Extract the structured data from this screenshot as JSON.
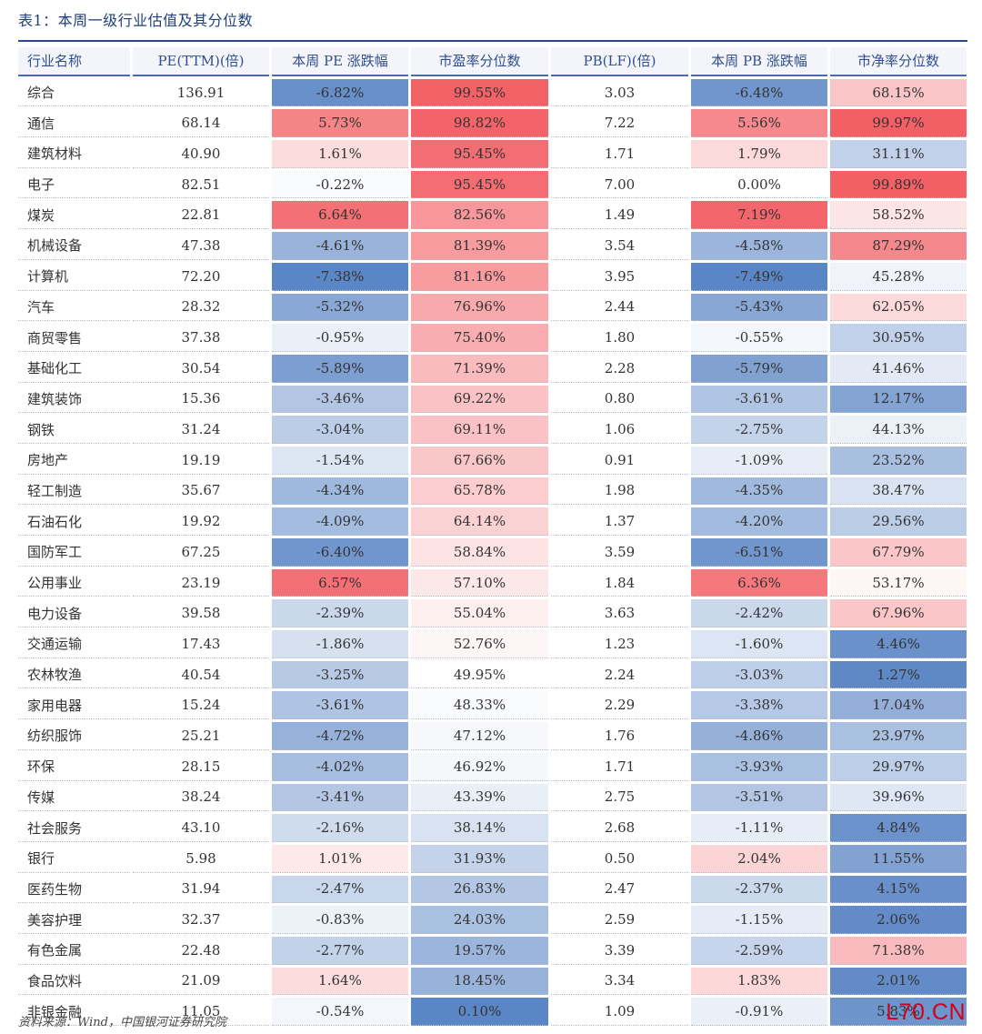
{
  "title": "表1：本周一级行业估值及其分位数",
  "columns": [
    "行业名称",
    "PE(TTM)(倍)",
    "本周 PE 涨跌幅",
    "市盈率分位数",
    "PB(LF)(倍)",
    "本周 PB 涨跌幅",
    "市净率分位数"
  ],
  "rows": [
    [
      "综合",
      "136.91",
      "-6.82%",
      "99.55%",
      "3.03",
      "-6.48%",
      "68.15%"
    ],
    [
      "通信",
      "68.14",
      "5.73%",
      "98.82%",
      "7.22",
      "5.56%",
      "99.97%"
    ],
    [
      "建筑材料",
      "40.90",
      "1.61%",
      "95.45%",
      "1.71",
      "1.79%",
      "31.11%"
    ],
    [
      "电子",
      "82.51",
      "-0.22%",
      "95.45%",
      "7.00",
      "0.00%",
      "99.89%"
    ],
    [
      "煤炭",
      "22.81",
      "6.64%",
      "82.56%",
      "1.49",
      "7.19%",
      "58.52%"
    ],
    [
      "机械设备",
      "47.38",
      "-4.61%",
      "81.39%",
      "3.54",
      "-4.58%",
      "87.29%"
    ],
    [
      "计算机",
      "72.20",
      "-7.38%",
      "81.16%",
      "3.95",
      "-7.49%",
      "45.28%"
    ],
    [
      "汽车",
      "28.32",
      "-5.32%",
      "76.96%",
      "2.44",
      "-5.43%",
      "62.05%"
    ],
    [
      "商贸零售",
      "37.38",
      "-0.95%",
      "75.40%",
      "1.80",
      "-0.55%",
      "30.95%"
    ],
    [
      "基础化工",
      "30.54",
      "-5.89%",
      "71.39%",
      "2.28",
      "-5.79%",
      "41.46%"
    ],
    [
      "建筑装饰",
      "15.36",
      "-3.46%",
      "69.22%",
      "0.80",
      "-3.61%",
      "12.17%"
    ],
    [
      "钢铁",
      "31.24",
      "-3.04%",
      "69.11%",
      "1.06",
      "-2.75%",
      "44.13%"
    ],
    [
      "房地产",
      "19.19",
      "-1.54%",
      "67.66%",
      "0.91",
      "-1.09%",
      "23.52%"
    ],
    [
      "轻工制造",
      "35.67",
      "-4.34%",
      "65.78%",
      "1.98",
      "-4.35%",
      "38.47%"
    ],
    [
      "石油石化",
      "19.92",
      "-4.09%",
      "64.14%",
      "1.37",
      "-4.20%",
      "29.56%"
    ],
    [
      "国防军工",
      "67.25",
      "-6.40%",
      "58.84%",
      "3.59",
      "-6.51%",
      "67.79%"
    ],
    [
      "公用事业",
      "23.19",
      "6.57%",
      "57.10%",
      "1.84",
      "6.36%",
      "53.17%"
    ],
    [
      "电力设备",
      "39.58",
      "-2.39%",
      "55.04%",
      "3.63",
      "-2.42%",
      "67.96%"
    ],
    [
      "交通运输",
      "17.43",
      "-1.86%",
      "52.76%",
      "1.23",
      "-1.60%",
      "4.46%"
    ],
    [
      "农林牧渔",
      "40.54",
      "-3.25%",
      "49.95%",
      "2.24",
      "-3.03%",
      "1.27%"
    ],
    [
      "家用电器",
      "15.24",
      "-3.61%",
      "48.33%",
      "2.29",
      "-3.38%",
      "17.04%"
    ],
    [
      "纺织服饰",
      "25.21",
      "-4.72%",
      "47.12%",
      "1.76",
      "-4.86%",
      "23.97%"
    ],
    [
      "环保",
      "28.15",
      "-4.02%",
      "46.92%",
      "1.71",
      "-3.93%",
      "29.97%"
    ],
    [
      "传媒",
      "38.24",
      "-3.41%",
      "43.39%",
      "2.75",
      "-3.51%",
      "39.96%"
    ],
    [
      "社会服务",
      "43.10",
      "-2.16%",
      "38.14%",
      "2.68",
      "-1.11%",
      "4.84%"
    ],
    [
      "银行",
      "5.98",
      "1.01%",
      "31.93%",
      "0.50",
      "2.04%",
      "11.55%"
    ],
    [
      "医药生物",
      "31.94",
      "-2.47%",
      "26.83%",
      "2.47",
      "-2.37%",
      "4.15%"
    ],
    [
      "美容护理",
      "32.37",
      "-0.83%",
      "24.03%",
      "2.59",
      "-1.15%",
      "2.06%"
    ],
    [
      "有色金属",
      "22.48",
      "-2.77%",
      "19.57%",
      "3.39",
      "-2.59%",
      "71.38%"
    ],
    [
      "食品饮料",
      "21.09",
      "1.64%",
      "18.45%",
      "3.34",
      "1.83%",
      "2.01%"
    ],
    [
      "非银金融",
      "11.05",
      "-0.54%",
      "0.10%",
      "1.09",
      "-0.91%",
      "5.83%"
    ]
  ],
  "heat_colors": {
    "high": "#f26065",
    "mid": "#ffffff",
    "low": "#5b86c5"
  },
  "source": "资料来源：Wind，中国银河证券研究院",
  "watermark": "L70.CN"
}
